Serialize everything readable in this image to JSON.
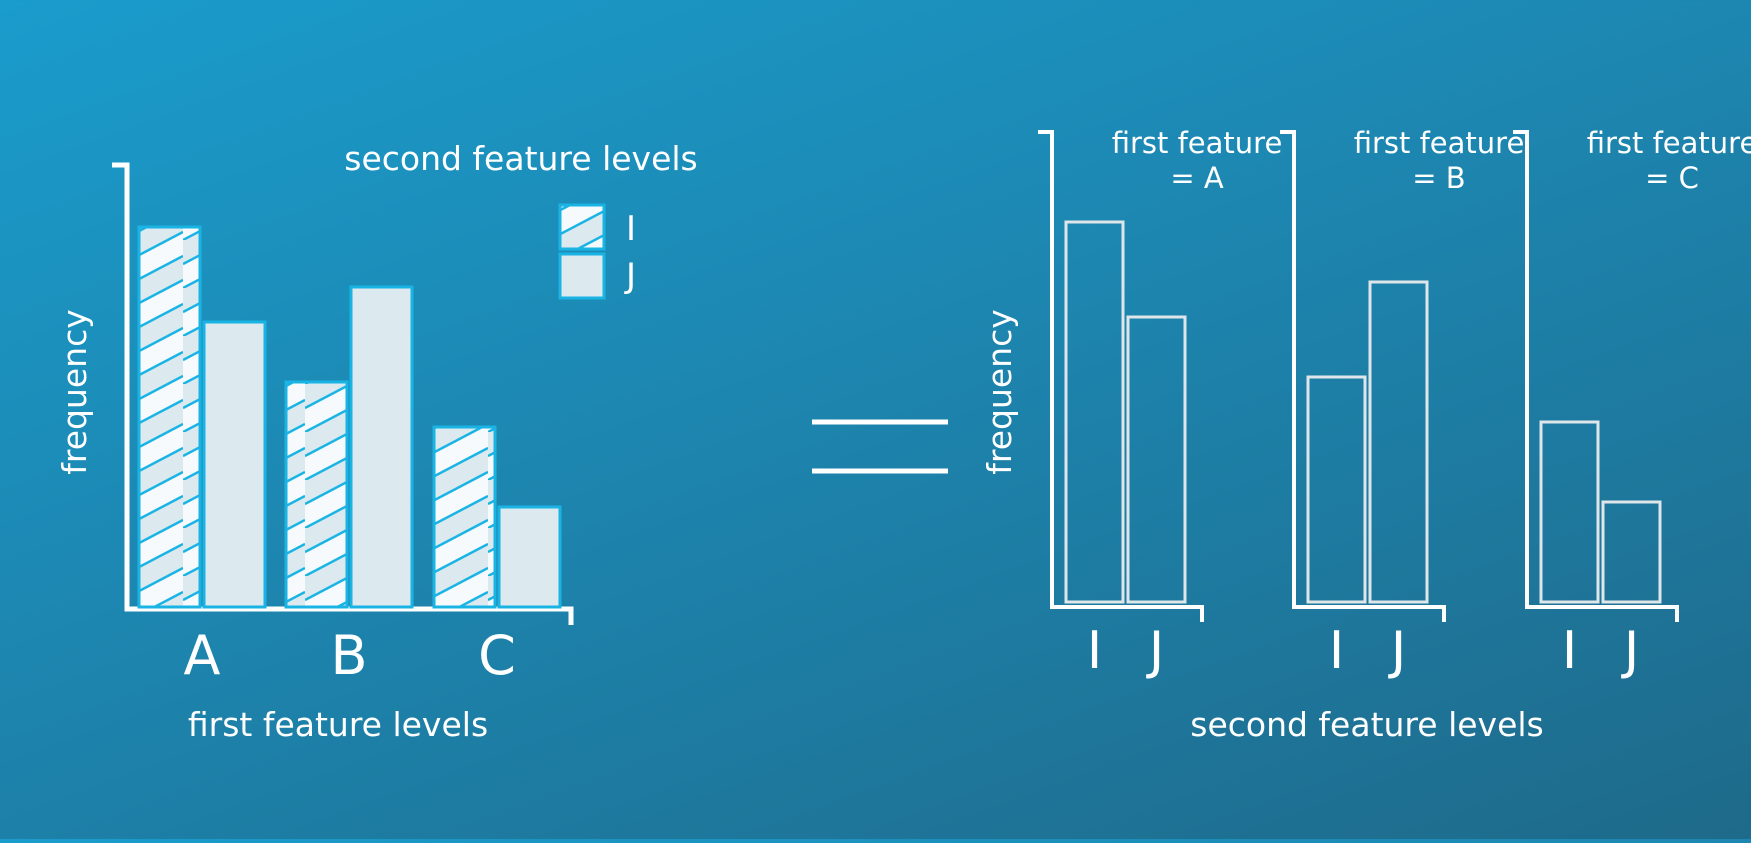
{
  "chart_data": [
    {
      "type": "bar",
      "categories": [
        "A",
        "B",
        "C"
      ],
      "series": [
        {
          "name": "I",
          "values": [
            76,
            45,
            36
          ]
        },
        {
          "name": "J",
          "values": [
            57,
            64,
            20
          ]
        }
      ],
      "xlabel": "first feature levels",
      "ylabel": "frequency",
      "legend_title": "second feature levels",
      "legend_position": "top-right",
      "ylim": [
        0,
        88
      ]
    },
    {
      "type": "bar",
      "facet_titles": [
        "first feature = A",
        "first feature = B",
        "first feature = C"
      ],
      "panels": [
        {
          "title_line1": "first feature",
          "title_line2": "= A",
          "categories": [
            "I",
            "J"
          ],
          "values": [
            76,
            57
          ]
        },
        {
          "title_line1": "first feature",
          "title_line2": "= B",
          "categories": [
            "I",
            "J"
          ],
          "values": [
            45,
            64
          ]
        },
        {
          "title_line1": "first feature",
          "title_line2": "= C",
          "categories": [
            "I",
            "J"
          ],
          "values": [
            36,
            20
          ]
        }
      ],
      "xlabel": "second feature levels",
      "ylabel": "frequency",
      "ylim": [
        0,
        88
      ]
    }
  ],
  "colors": {
    "axis": "#ffffff",
    "bar_fill": "#dce9ef",
    "bar_stroke": "#1ab4e4",
    "hatch_light": "#f6fafc",
    "facet_bar_stroke": "#dfe6ea"
  }
}
